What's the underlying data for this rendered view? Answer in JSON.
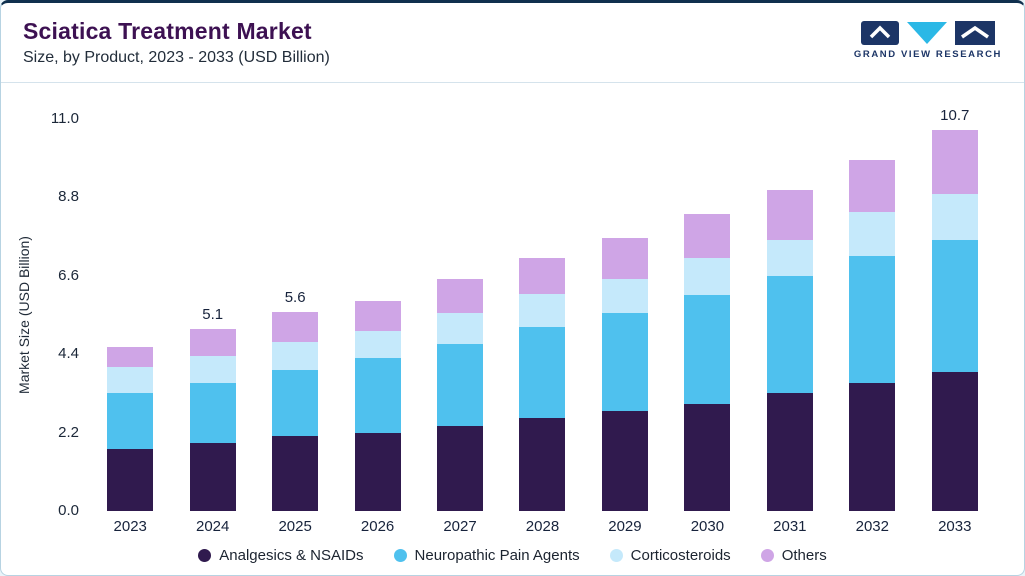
{
  "header": {
    "title": "Sciatica Treatment Market",
    "subtitle": "Size, by Product, 2023 - 2033 (USD Billion)",
    "logo_text": "GRAND VIEW RESEARCH"
  },
  "chart_data": {
    "type": "bar",
    "stacked": true,
    "title": "Sciatica Treatment Market Size, by Product, 2023 - 2033 (USD Billion)",
    "ylabel": "Market Size (USD Billion)",
    "ylim": [
      0,
      11.0
    ],
    "yticks": [
      0.0,
      2.2,
      4.4,
      6.6,
      8.8,
      11.0
    ],
    "ytick_labels": [
      "0.0",
      "2.2",
      "4.4",
      "6.6",
      "8.8",
      "11.0"
    ],
    "categories": [
      "2023",
      "2024",
      "2025",
      "2026",
      "2027",
      "2028",
      "2029",
      "2030",
      "2031",
      "2032",
      "2033"
    ],
    "series": [
      {
        "name": "Analgesics & NSAIDs",
        "color": "#301a4e",
        "values": [
          1.75,
          1.9,
          2.1,
          2.2,
          2.4,
          2.6,
          2.8,
          3.0,
          3.3,
          3.6,
          3.9
        ]
      },
      {
        "name": "Neuropathic Pain Agents",
        "color": "#4fc1ee",
        "values": [
          1.55,
          1.7,
          1.85,
          2.1,
          2.3,
          2.55,
          2.75,
          3.05,
          3.3,
          3.55,
          3.7
        ]
      },
      {
        "name": "Corticosteroids",
        "color": "#c5e9fb",
        "values": [
          0.75,
          0.75,
          0.8,
          0.75,
          0.85,
          0.95,
          0.95,
          1.05,
          1.0,
          1.25,
          1.3
        ]
      },
      {
        "name": "Others",
        "color": "#cfa5e6",
        "values": [
          0.55,
          0.75,
          0.85,
          0.85,
          0.95,
          1.0,
          1.15,
          1.25,
          1.4,
          1.45,
          1.8
        ]
      }
    ],
    "totals": [
      4.6,
      5.1,
      5.6,
      5.9,
      6.5,
      7.1,
      7.65,
      8.35,
      9.0,
      9.85,
      10.7
    ],
    "bar_labels": [
      "",
      "5.1",
      "5.6",
      "",
      "",
      "",
      "",
      "",
      "",
      "",
      "10.7"
    ],
    "legend_position": "bottom",
    "grid": false
  },
  "colors": {
    "accent_top": "#10304e",
    "page_background": "#e9f4f9",
    "card_border": "#b7d3e2",
    "title_purple": "#3d1152",
    "logo_navy": "#1c3566",
    "logo_cyan": "#2bb8e6"
  }
}
